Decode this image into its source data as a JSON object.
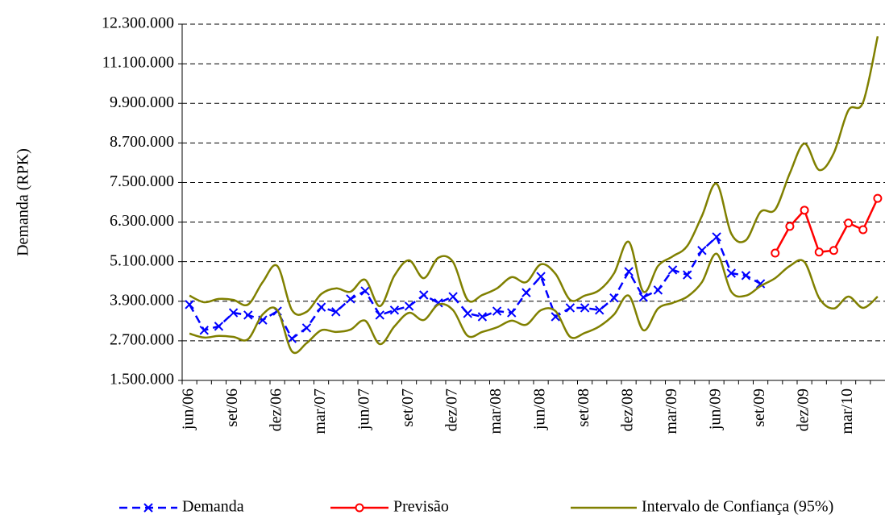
{
  "chart_data": {
    "type": "line",
    "y_label": "Demanda (RPK)",
    "categories": [
      "jun/06",
      null,
      null,
      "set/06",
      null,
      null,
      "dez/06",
      null,
      null,
      "mar/07",
      null,
      null,
      "jun/07",
      null,
      null,
      "set/07",
      null,
      null,
      "dez/07",
      null,
      null,
      "mar/08",
      null,
      null,
      "jun/08",
      null,
      null,
      "set/08",
      null,
      null,
      "dez/08",
      null,
      null,
      "mar/09",
      null,
      null,
      "jun/09",
      null,
      null,
      "set/09",
      null,
      null,
      "dez/09",
      null,
      null,
      "mar/10",
      null,
      null
    ],
    "ylim": [
      1500000,
      12300000
    ],
    "yticks": [
      {
        "value": 1500000,
        "label": "1.500.000"
      },
      {
        "value": 2700000,
        "label": "2.700.000"
      },
      {
        "value": 3900000,
        "label": "3.900.000"
      },
      {
        "value": 5100000,
        "label": "5.100.000"
      },
      {
        "value": 6300000,
        "label": "6.300.000"
      },
      {
        "value": 7500000,
        "label": "7.500.000"
      },
      {
        "value": 8700000,
        "label": "8.700.000"
      },
      {
        "value": 9900000,
        "label": "9.900.000"
      },
      {
        "value": 11100000,
        "label": "11.100.000"
      },
      {
        "value": 12300000,
        "label": "12.300.000"
      }
    ],
    "grid": true,
    "legend": "bottom",
    "series": [
      {
        "name": "Demanda",
        "color": "#0000ff",
        "style": "dashed",
        "marker": "x",
        "values": [
          3800000,
          3020000,
          3140000,
          3550000,
          3480000,
          3330000,
          3600000,
          2770000,
          3090000,
          3720000,
          3580000,
          3970000,
          4210000,
          3480000,
          3630000,
          3750000,
          4090000,
          3850000,
          4040000,
          3530000,
          3430000,
          3600000,
          3550000,
          4160000,
          4650000,
          3430000,
          3700000,
          3700000,
          3630000,
          4000000,
          4800000,
          4020000,
          4240000,
          4850000,
          4700000,
          5440000,
          5850000,
          4750000,
          4680000,
          4430000,
          null,
          null,
          null,
          null,
          null,
          null,
          null,
          null
        ]
      },
      {
        "name": "Previsão",
        "color": "#ff0000",
        "style": "solid",
        "marker": "circle",
        "values": [
          null,
          null,
          null,
          null,
          null,
          null,
          null,
          null,
          null,
          null,
          null,
          null,
          null,
          null,
          null,
          null,
          null,
          null,
          null,
          null,
          null,
          null,
          null,
          null,
          null,
          null,
          null,
          null,
          null,
          null,
          null,
          null,
          null,
          null,
          null,
          null,
          null,
          null,
          null,
          null,
          5360000,
          6170000,
          6660000,
          5390000,
          5440000,
          6270000,
          6070000,
          7020000
        ]
      },
      {
        "name": "Intervalo de Confiança (95%)",
        "color": "#808000",
        "style": "band",
        "upper": [
          4070000,
          3870000,
          3970000,
          3940000,
          3800000,
          4480000,
          4970000,
          3630000,
          3580000,
          4120000,
          4290000,
          4190000,
          4550000,
          3750000,
          4680000,
          5140000,
          4600000,
          5220000,
          5090000,
          3940000,
          4090000,
          4290000,
          4630000,
          4480000,
          5020000,
          4730000,
          3940000,
          4070000,
          4240000,
          4750000,
          5700000,
          4190000,
          4970000,
          5260000,
          5580000,
          6490000,
          7460000,
          5950000,
          5750000,
          6610000,
          6680000,
          7780000,
          8680000,
          7880000,
          8390000,
          9690000,
          9930000,
          11930000
        ],
        "lower": [
          2920000,
          2800000,
          2850000,
          2820000,
          2750000,
          3500000,
          3630000,
          2380000,
          2630000,
          3020000,
          2970000,
          3040000,
          3310000,
          2600000,
          3140000,
          3550000,
          3330000,
          3800000,
          3630000,
          2850000,
          2970000,
          3110000,
          3310000,
          3190000,
          3630000,
          3600000,
          2820000,
          2940000,
          3140000,
          3500000,
          4070000,
          3020000,
          3680000,
          3850000,
          4040000,
          4480000,
          5340000,
          4190000,
          4070000,
          4360000,
          4600000,
          4970000,
          5090000,
          4000000,
          3680000,
          4040000,
          3700000,
          4040000
        ]
      }
    ]
  }
}
